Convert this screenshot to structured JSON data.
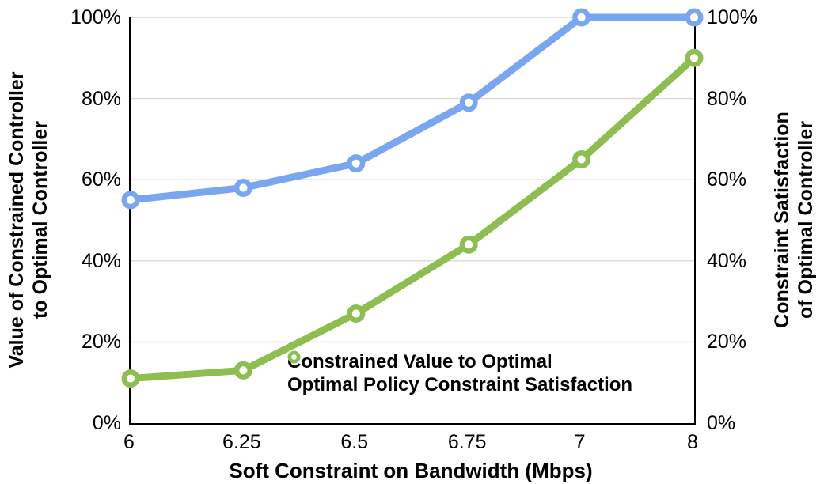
{
  "chart_data": {
    "type": "line",
    "x_categories": [
      "6",
      "6.25",
      "6.5",
      "6.75",
      "7",
      "8"
    ],
    "series": [
      {
        "name": "Constrained Value to Optimal",
        "color": "#79A6F0",
        "axis": "left",
        "values": [
          55,
          58,
          64,
          79,
          100,
          100
        ]
      },
      {
        "name": "Optimal Policy Constraint Satisfaction",
        "color": "#8DBE4F",
        "axis": "right",
        "values": [
          11,
          13,
          27,
          44,
          65,
          90
        ]
      }
    ],
    "left_axis": {
      "title_line1": "Value of Constrained Controller",
      "title_line2": "to Optimal Controller",
      "tick_labels": [
        "0%",
        "20%",
        "40%",
        "60%",
        "80%",
        "100%"
      ],
      "tick_values": [
        0,
        20,
        40,
        60,
        80,
        100
      ]
    },
    "right_axis": {
      "title_line1": "Constraint Satisfaction",
      "title_line2": "of Optimal Controller",
      "tick_labels": [
        "0%",
        "20%",
        "40%",
        "60%",
        "80%",
        "100%"
      ],
      "tick_values": [
        0,
        20,
        40,
        60,
        80,
        100
      ]
    },
    "x_axis": {
      "title": "Soft Constraint on Bandwidth (Mbps)"
    },
    "ylim": [
      0,
      100
    ],
    "grid": "horizontal",
    "legend_position": "inside-bottom-center",
    "colors": {
      "grid": "#D8D8D8",
      "axis": "#000000",
      "marker_fill": "#FFFFFF"
    }
  }
}
